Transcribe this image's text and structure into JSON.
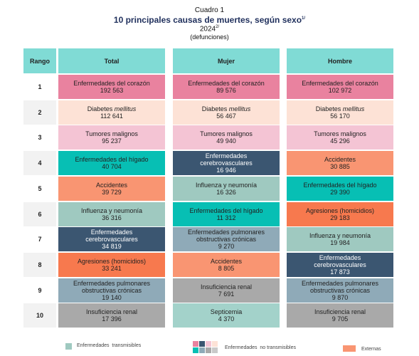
{
  "header": {
    "label": "Cuadro 1",
    "title": "10 principales causas de muertes, según sexo",
    "title_note": "1/",
    "year": "2024",
    "year_note": "2/",
    "unit": "(defunciones)"
  },
  "table": {
    "columns": [
      "Rango",
      "Total",
      "Mujer",
      "Hombre"
    ],
    "rows": [
      {
        "rank": "1",
        "cells": [
          {
            "name": "Enfermedades del corazón",
            "value": "192 563",
            "color": "#e9829f"
          },
          {
            "name": "Enfermedades del corazón",
            "value": "89 576",
            "color": "#e9829f"
          },
          {
            "name": "Enfermedades del corazón",
            "value": "102 972",
            "color": "#e9829f"
          }
        ]
      },
      {
        "rank": "2",
        "cells": [
          {
            "name": "Diabetes",
            "name_italic": "mellitus",
            "value": "112 641",
            "color": "#fde2d6"
          },
          {
            "name": "Diabetes",
            "name_italic": "mellitus",
            "value": "56 467",
            "color": "#fde2d6"
          },
          {
            "name": "Diabetes",
            "name_italic": "mellitus",
            "value": "56 170",
            "color": "#fde2d6"
          }
        ]
      },
      {
        "rank": "3",
        "cells": [
          {
            "name": "Tumores malignos",
            "value": "95 237",
            "color": "#f4c4d4"
          },
          {
            "name": "Tumores malignos",
            "value": "49 940",
            "color": "#f4c4d4"
          },
          {
            "name": "Tumores malignos",
            "value": "45 296",
            "color": "#f4c4d4"
          }
        ]
      },
      {
        "rank": "4",
        "cells": [
          {
            "name": "Enfermedades del hígado",
            "value": "40 704",
            "color": "#07bfb4"
          },
          {
            "name": "Enfermedades cerebrovasculares",
            "value": "16 946",
            "color": "#3b5671"
          },
          {
            "name": "Accidentes",
            "value": "30 885",
            "color": "#f99572"
          }
        ]
      },
      {
        "rank": "5",
        "cells": [
          {
            "name": "Accidentes",
            "value": "39 729",
            "color": "#f99572"
          },
          {
            "name": "Influenza y neumonía",
            "value": "16 326",
            "color": "#9fc9c0"
          },
          {
            "name": "Enfermedades del hígado",
            "value": "29 390",
            "color": "#07bfb4"
          }
        ]
      },
      {
        "rank": "6",
        "cells": [
          {
            "name": "Influenza y neumonía",
            "value": "36 316",
            "color": "#9fc9c0"
          },
          {
            "name": "Enfermedades del hígado",
            "value": "11 312",
            "color": "#07bfb4"
          },
          {
            "name": "Agresiones (homicidios)",
            "value": "29 183",
            "color": "#f7794e"
          }
        ]
      },
      {
        "rank": "7",
        "cells": [
          {
            "name": "Enfermedades cerebrovasculares",
            "value": "34 819",
            "color": "#3b5671"
          },
          {
            "name": "Enfermedades pulmonares obstructivas crónicas",
            "value": "9 270",
            "color": "#8faab8"
          },
          {
            "name": "Influenza y neumonía",
            "value": "19 984",
            "color": "#9fc9c0"
          }
        ]
      },
      {
        "rank": "8",
        "cells": [
          {
            "name": "Agresiones (homicidios)",
            "value": "33 241",
            "color": "#f7794e"
          },
          {
            "name": "Accidentes",
            "value": "8 805",
            "color": "#f99572"
          },
          {
            "name": "Enfermedades cerebrovasculares",
            "value": "17 873",
            "color": "#3b5671"
          }
        ]
      },
      {
        "rank": "9",
        "cells": [
          {
            "name": "Enfermedades pulmonares obstructivas crónicas",
            "value": "19 140",
            "color": "#8faab8"
          },
          {
            "name": "Insuficiencia renal",
            "value": "7 691",
            "color": "#a9a9a9"
          },
          {
            "name": "Enfermedades pulmonares obstructivas crónicas",
            "value": "9 870",
            "color": "#8faab8"
          }
        ]
      },
      {
        "rank": "10",
        "cells": [
          {
            "name": "Insuficiencia renal",
            "value": "17 396",
            "color": "#a9a9a9"
          },
          {
            "name": "Septicemia",
            "value": "4 370",
            "color": "#a3d2ca"
          },
          {
            "name": "Insuficiencia renal",
            "value": "9 705",
            "color": "#a9a9a9"
          }
        ]
      }
    ]
  },
  "legend": [
    "Enfermedades  transmisibles",
    "Enfermedades  no transmisibles",
    "Externas"
  ]
}
